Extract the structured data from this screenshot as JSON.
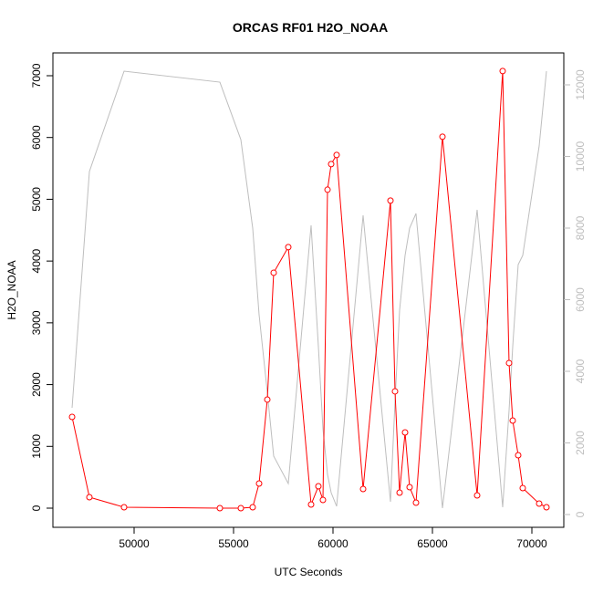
{
  "chart_data": {
    "type": "line",
    "title": "ORCAS RF01 H2O_NOAA",
    "x_label": "UTC Seconds",
    "y_label": "H2O_NOAA",
    "x": [
      46881,
      47752,
      49495,
      54312,
      55367,
      55963,
      56284,
      56697,
      57018,
      57752,
      58899,
      59266,
      59495,
      59725,
      59908,
      60183,
      61514,
      62890,
      63119,
      63349,
      63624,
      63853,
      64174,
      65505,
      67248,
      68532,
      68853,
      69037,
      69312,
      69541,
      70367,
      70734
    ],
    "series": [
      {
        "color": "#ff0000",
        "markers": true,
        "values": [
          1477,
          177,
          15,
          0,
          0,
          15,
          399,
          1758,
          3811,
          4225,
          59,
          354,
          133,
          5155,
          5569,
          5717,
          310,
          4978,
          1891,
          251,
          1226,
          340,
          89,
          6012,
          207,
          7075,
          2349,
          1418,
          857,
          325,
          74,
          15
        ]
      },
      {
        "color": "#bebebe",
        "markers": false,
        "axis": "y2",
        "values": [
          2981,
          9580,
          12382,
          12076,
          10471,
          8000,
          5580,
          3414,
          1631,
          866,
          8076,
          4688,
          2395,
          1121,
          611,
          229,
          8357,
          357,
          3159,
          5707,
          7236,
          7999,
          8408,
          178,
          8510,
          204,
          2904,
          4688,
          6981,
          7236,
          10293,
          12382
        ]
      }
    ],
    "xlim": [
      45917,
      71606
    ],
    "xticks": [
      50000,
      55000,
      60000,
      65000,
      70000
    ],
    "ylim": [
      -310,
      7369
    ],
    "yticks": [
      0,
      1000,
      2000,
      3000,
      4000,
      5000,
      6000,
      7000
    ],
    "y2lim": [
      -357,
      12892
    ],
    "y2ticks": [
      0,
      2000,
      4000,
      6000,
      8000,
      10000,
      12000
    ]
  }
}
